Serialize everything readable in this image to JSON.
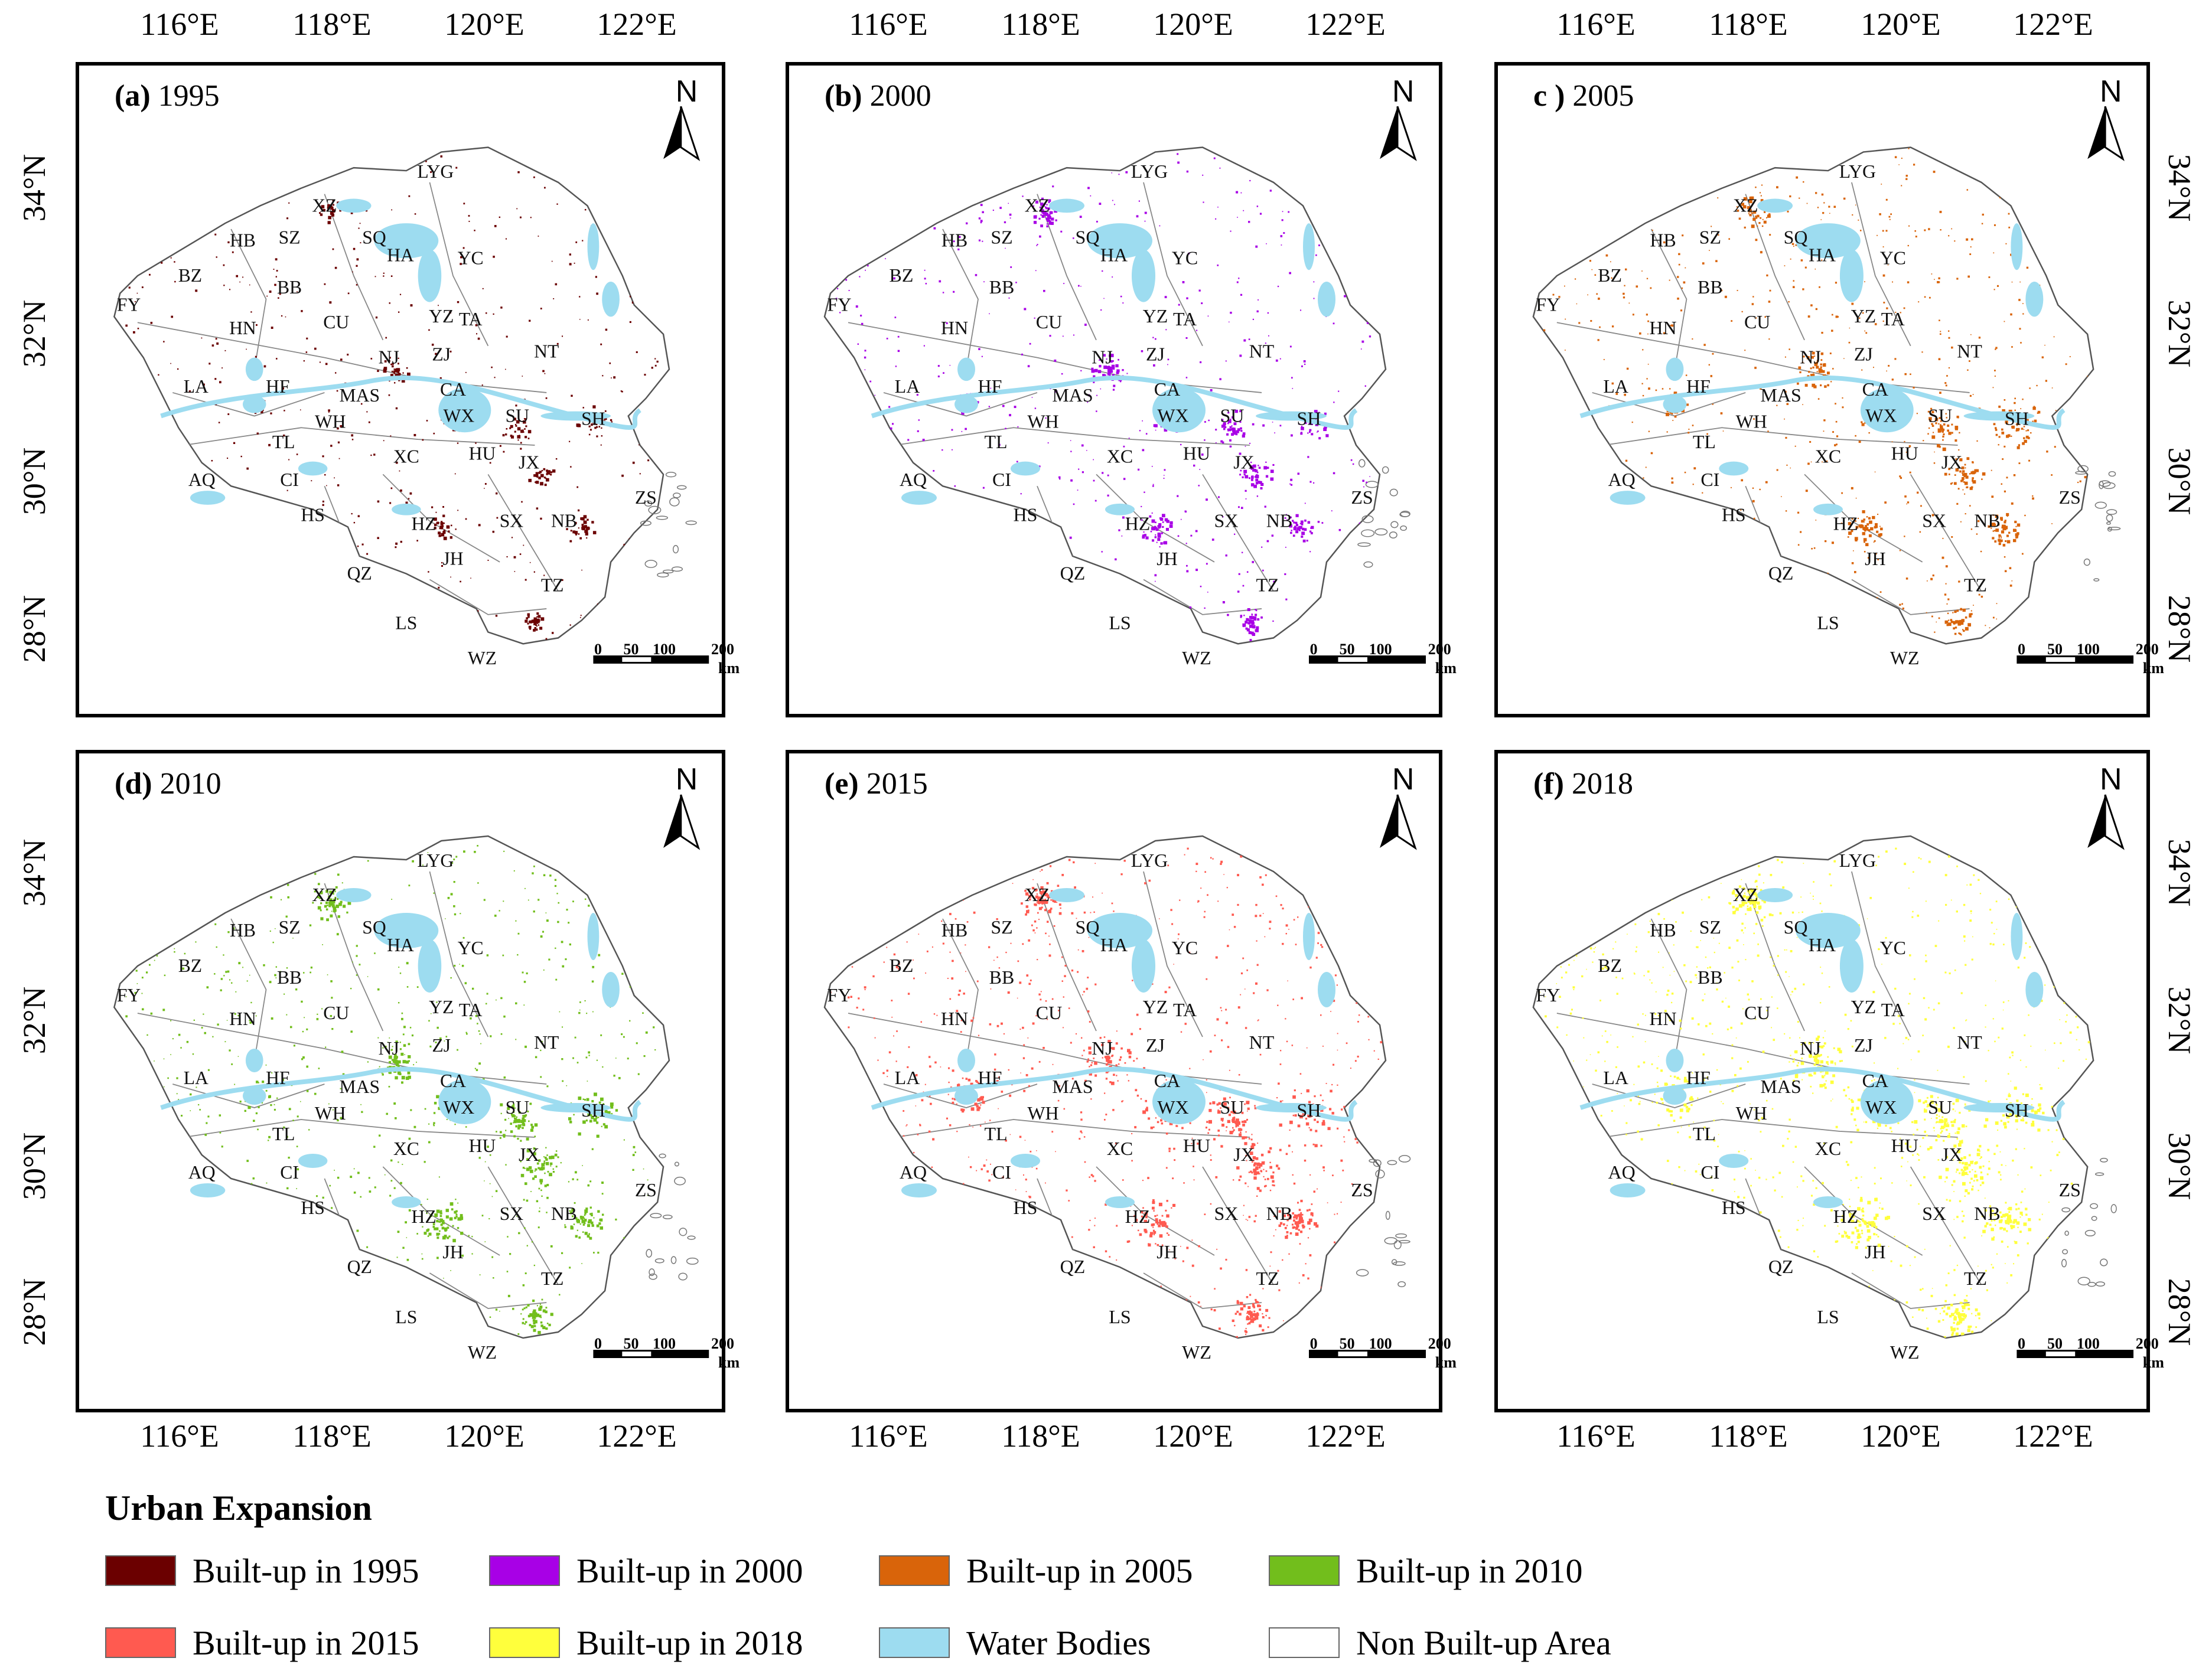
{
  "figure": {
    "axes": {
      "longitude_labels": [
        "116°E",
        "118°E",
        "120°E",
        "122°E"
      ],
      "latitude_labels": [
        "34°N",
        "32°N",
        "30°N",
        "28°N"
      ]
    },
    "north_label": "N",
    "scale_bar": {
      "ticks": [
        "0",
        "50",
        "100",
        "200"
      ],
      "unit": "km"
    },
    "city_labels": [
      "LYG",
      "XZ",
      "HB",
      "SZ",
      "SQ",
      "HA",
      "YC",
      "BZ",
      "BB",
      "FY",
      "HN",
      "CU",
      "YZ",
      "TA",
      "NT",
      "NJ",
      "ZJ",
      "LA",
      "HF",
      "MAS",
      "CA",
      "WX",
      "SU",
      "SH",
      "WH",
      "TL",
      "XC",
      "HU",
      "JX",
      "AQ",
      "CI",
      "ZS",
      "HS",
      "HZ",
      "SX",
      "NB",
      "JH",
      "QZ",
      "TZ",
      "LS",
      "WZ"
    ],
    "panels": [
      {
        "letter": "(a)",
        "year": "1995",
        "color": "#6b0000"
      },
      {
        "letter": "(b)",
        "year": "2000",
        "color": "#a800e6"
      },
      {
        "letter": "c )",
        "year": "2005",
        "color": "#d9640a"
      },
      {
        "letter": "(d)",
        "year": "2010",
        "color": "#72be1c"
      },
      {
        "letter": "(e)",
        "year": "2015",
        "color": "#ff5a50"
      },
      {
        "letter": "(f)",
        "year": "2018",
        "color": "#ffff3c"
      }
    ]
  },
  "legend": {
    "title": "Urban Expansion",
    "items": [
      {
        "label": "Built-up in 1995",
        "color": "#6b0000"
      },
      {
        "label": "Built-up in 2000",
        "color": "#a800e6"
      },
      {
        "label": "Built-up in 2005",
        "color": "#d9640a"
      },
      {
        "label": "Built-up in 2010",
        "color": "#72be1c"
      },
      {
        "label": "Built-up in 2015",
        "color": "#ff5a50"
      },
      {
        "label": "Built-up in 2018",
        "color": "#ffff3c"
      },
      {
        "label": "Water Bodies",
        "color": "#9ddcf0"
      },
      {
        "label": "Non Built-up Area",
        "color": "#ffffff"
      }
    ]
  }
}
